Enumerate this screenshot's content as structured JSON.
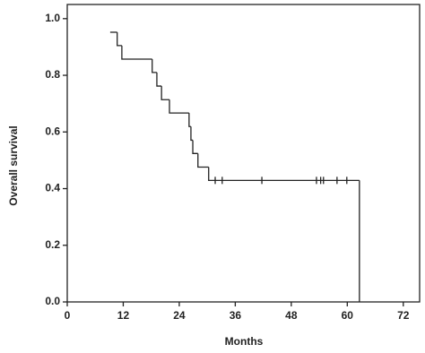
{
  "chart_data": {
    "type": "step",
    "xlabel": "Months",
    "ylabel": "Overall survival",
    "x": [
      9.2,
      10.7,
      11.7,
      18.2,
      19.2,
      20.2,
      21.9,
      26.1,
      26.5,
      26.9,
      28,
      30.3,
      62.6
    ],
    "values": [
      0.952,
      0.905,
      0.857,
      0.81,
      0.762,
      0.714,
      0.667,
      0.619,
      0.571,
      0.524,
      0.476,
      0.429,
      0
    ],
    "censored_x": [
      31.7,
      33.2,
      41.7,
      53.4,
      54.3,
      54.9,
      57.8,
      59.9
    ],
    "censored_values": [
      0.429,
      0.429,
      0.429,
      0.429,
      0.429,
      0.429,
      0.429,
      0.429
    ],
    "color": "#222222",
    "xlim": [
      0,
      75.5
    ],
    "ylim": [
      0,
      1.05
    ],
    "xticks": [
      0,
      12,
      24,
      36,
      48,
      60,
      72
    ],
    "yticks": [
      {
        "value": 0,
        "label": "0.0"
      },
      0.2,
      0.4,
      0.6,
      0.8,
      {
        "value": 1,
        "label": "1.0"
      }
    ],
    "grid": false
  }
}
